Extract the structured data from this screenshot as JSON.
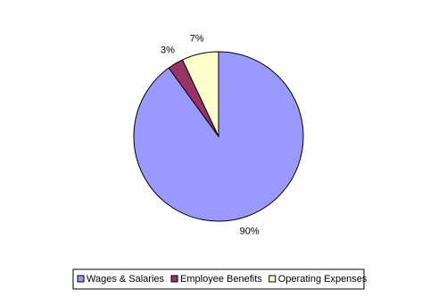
{
  "chart_data": {
    "type": "pie",
    "categories": [
      "Wages & Salaries",
      "Employee Benefits",
      "Operating Expenses"
    ],
    "values": [
      90,
      3,
      7
    ],
    "value_labels": [
      "90%",
      "3%",
      "7%"
    ],
    "colors": [
      "#9999ff",
      "#993366",
      "#ffffcc"
    ],
    "legend": "bottom"
  }
}
